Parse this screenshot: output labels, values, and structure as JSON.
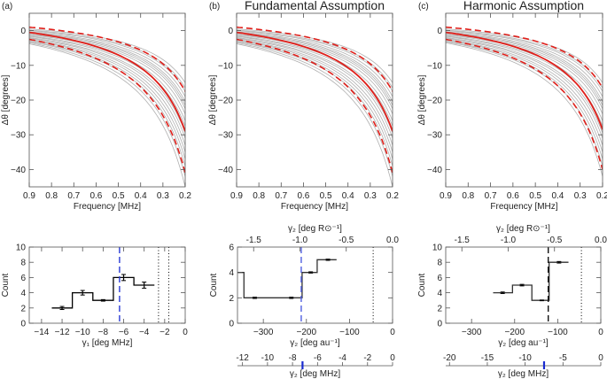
{
  "panels": {
    "a_label": "(a)",
    "b_label": "(b)",
    "c_label": "(c)",
    "b_title": "Fundamental Assumption",
    "c_title": "Harmonic Assumption"
  },
  "chart_data": [
    {
      "id": "a-top",
      "type": "line",
      "xlabel": "Frequency [MHz]",
      "ylabel": "Δθ [degrees]",
      "xlim": [
        0.9,
        0.2
      ],
      "ylim": [
        -45,
        5
      ],
      "xticks": [
        0.9,
        0.8,
        0.7,
        0.6,
        0.5,
        0.4,
        0.3,
        0.2
      ],
      "xtick_labels": [
        "0.9",
        "0.8",
        "0.7",
        "0.6",
        "0.5",
        "0.4",
        "0.3",
        "0.2"
      ],
      "yticks": [
        0,
        -10,
        -20,
        -30,
        -40
      ],
      "ytick_labels": [
        "0",
        "−10",
        "−20",
        "−30",
        "−40"
      ],
      "model": "value = a + g / frequency, each curve given by its values at 0.9 MHz and 0.2 MHz",
      "ensemble_color": "#b0b0b0",
      "ensemble": [
        [
          0.5,
          -15
        ],
        [
          0.2,
          -16.5
        ],
        [
          0,
          -17.5
        ],
        [
          -0.3,
          -19
        ],
        [
          -0.5,
          -20.5
        ],
        [
          -0.7,
          -21.5
        ],
        [
          -1,
          -22.5
        ],
        [
          -1.2,
          -24
        ],
        [
          -1.5,
          -26
        ],
        [
          -1.7,
          -27.5
        ],
        [
          -2,
          -29.5
        ],
        [
          -2.2,
          -31
        ],
        [
          -2.5,
          -33
        ],
        [
          -2.7,
          -35
        ],
        [
          -3,
          -37
        ],
        [
          -3.2,
          -39
        ],
        [
          -3.5,
          -42
        ],
        [
          -3.8,
          -45
        ]
      ],
      "mean": [
        -0.5,
        -29
      ],
      "upper": [
        1,
        -17.5
      ],
      "lower": [
        -2.5,
        -41
      ],
      "mean_color": "#e0201b"
    },
    {
      "id": "b-top",
      "type": "line",
      "xlabel": "Frequency [MHz]",
      "ylabel": "Δθ [degrees]",
      "xlim": [
        0.9,
        0.2
      ],
      "ylim": [
        -45,
        5
      ],
      "xticks": [
        0.9,
        0.8,
        0.7,
        0.6,
        0.5,
        0.4,
        0.3,
        0.2
      ],
      "xtick_labels": [
        "0.9",
        "0.8",
        "0.7",
        "0.6",
        "0.5",
        "0.4",
        "0.3",
        "0.2"
      ],
      "yticks": [
        0,
        -10,
        -20,
        -30,
        -40
      ],
      "ytick_labels": [
        "0",
        "−10",
        "−20",
        "−30",
        "−40"
      ],
      "ensemble_color": "#b0b0b0",
      "ensemble": [
        [
          0.5,
          -15
        ],
        [
          0.2,
          -16.5
        ],
        [
          0,
          -17.5
        ],
        [
          -0.3,
          -19
        ],
        [
          -0.5,
          -20.5
        ],
        [
          -0.7,
          -21.5
        ],
        [
          -1,
          -22.5
        ],
        [
          -1.2,
          -24
        ],
        [
          -1.5,
          -26
        ],
        [
          -1.7,
          -27.5
        ],
        [
          -2,
          -29.5
        ],
        [
          -2.2,
          -31
        ],
        [
          -2.5,
          -33
        ],
        [
          -2.7,
          -35
        ],
        [
          -3,
          -37
        ],
        [
          -3.2,
          -39
        ],
        [
          -3.5,
          -42
        ],
        [
          -3.8,
          -45
        ]
      ],
      "mean": [
        -0.5,
        -29
      ],
      "upper": [
        1,
        -17.5
      ],
      "lower": [
        -2.5,
        -41
      ],
      "mean_color": "#e0201b"
    },
    {
      "id": "c-top",
      "type": "line",
      "xlabel": "Frequency [MHz]",
      "ylabel": "Δθ [degrees]",
      "xlim": [
        0.9,
        0.2
      ],
      "ylim": [
        -45,
        5
      ],
      "xticks": [
        0.9,
        0.8,
        0.7,
        0.6,
        0.5,
        0.4,
        0.3,
        0.2
      ],
      "xtick_labels": [
        "0.9",
        "0.8",
        "0.7",
        "0.6",
        "0.5",
        "0.4",
        "0.3",
        "0.2"
      ],
      "yticks": [
        0,
        -10,
        -20,
        -30,
        -40
      ],
      "ytick_labels": [
        "0",
        "−10",
        "−20",
        "−30",
        "−40"
      ],
      "ensemble_color": "#b0b0b0",
      "ensemble": [
        [
          0.5,
          -15
        ],
        [
          0.2,
          -16.5
        ],
        [
          0,
          -17.5
        ],
        [
          -0.3,
          -19
        ],
        [
          -0.5,
          -20.5
        ],
        [
          -0.7,
          -21.5
        ],
        [
          -1,
          -22.5
        ],
        [
          -1.2,
          -24
        ],
        [
          -1.5,
          -26
        ],
        [
          -1.7,
          -27.5
        ],
        [
          -2,
          -29.5
        ],
        [
          -2.2,
          -31
        ],
        [
          -2.5,
          -33
        ],
        [
          -2.7,
          -35
        ],
        [
          -3,
          -37
        ],
        [
          -3.2,
          -39
        ],
        [
          -3.5,
          -42
        ]
      ],
      "mean": [
        -0.5,
        -28.5
      ],
      "upper": [
        1,
        -16.5
      ],
      "lower": [
        -2.5,
        -40
      ],
      "mean_color": "#e0201b"
    },
    {
      "id": "a-bottom",
      "type": "bar",
      "xlabel": "γ₁ [deg MHz]",
      "ylabel": "Count",
      "xlim": [
        -15.2,
        0
      ],
      "ylim": [
        0,
        10
      ],
      "xticks": [
        -14,
        -12,
        -10,
        -8,
        -6,
        -4,
        -2,
        0
      ],
      "xtick_labels": [
        "−14",
        "−12",
        "−10",
        "−8",
        "−6",
        "−4",
        "−2",
        "0"
      ],
      "yticks": [
        0,
        2,
        4,
        6,
        8,
        10
      ],
      "ytick_labels": [
        "0",
        "2",
        "4",
        "6",
        "8",
        "10"
      ],
      "bins": [
        {
          "from": -13,
          "to": -11,
          "count": 2,
          "err": 0.2
        },
        {
          "from": -11,
          "to": -9,
          "count": 4,
          "err": 0.3
        },
        {
          "from": -9,
          "to": -7,
          "count": 3,
          "err": 0.1
        },
        {
          "from": -7,
          "to": -5,
          "count": 6,
          "err": 0.4
        },
        {
          "from": -5,
          "to": -3,
          "count": 5,
          "err": 0.4
        }
      ],
      "step_color": "#000000",
      "median_line": {
        "x": -6.4,
        "color": "#2a3bd6"
      },
      "dotted_lines": [
        -2.6,
        -1.6
      ]
    },
    {
      "id": "b-bottom",
      "type": "bar",
      "xlabel": "γ₂ [deg au⁻¹]",
      "ylabel": "Count",
      "xlim": [
        -360,
        0
      ],
      "ylim": [
        0,
        6
      ],
      "xticks": [
        -300,
        -200,
        -100,
        0
      ],
      "xtick_labels": [
        "−300",
        "−200",
        "−100",
        "0"
      ],
      "yticks": [
        0,
        2,
        4,
        6
      ],
      "ytick_labels": [
        "0",
        "2",
        "4",
        "6"
      ],
      "top_axis": {
        "label": "γ₂ [deg R⊙⁻¹]",
        "factor": 215,
        "ticks": [
          -1.5,
          -1.0,
          -0.5,
          0.0
        ],
        "tick_labels": [
          "-1.5",
          "-1.0",
          "-0.5",
          "0.0"
        ]
      },
      "mhz_axis": {
        "label": "γ₂ [deg MHz]",
        "xlim": [
          -12.4,
          0
        ],
        "ticks": [
          -12,
          -10,
          -8,
          -6,
          -4,
          -2,
          0
        ],
        "tick_labels": [
          "-12",
          "-10",
          "-8",
          "-6",
          "-4",
          "-2",
          "0"
        ],
        "marker": -7.2,
        "marker_color": "#1a2bd0"
      },
      "bins": [
        {
          "from": -360,
          "to": -345,
          "count": 4,
          "err": 0
        },
        {
          "from": -345,
          "to": -300,
          "count": 2,
          "err": 0.05,
          "mark": -320
        },
        {
          "from": -300,
          "to": -255,
          "count": 2,
          "err": 0
        },
        {
          "from": -255,
          "to": -210,
          "count": 2,
          "err": 0.05,
          "mark": -235
        },
        {
          "from": -210,
          "to": -175,
          "count": 4,
          "err": 0.05,
          "mark": -190
        },
        {
          "from": -175,
          "to": -130,
          "count": 5,
          "err": 0.05,
          "mark": -150
        }
      ],
      "step_color": "#333333",
      "median_line": {
        "x": -212,
        "color": "#5060e0"
      },
      "dotted_lines": [
        -45
      ]
    },
    {
      "id": "c-bottom",
      "type": "bar",
      "xlabel": "γ₂ [deg au⁻¹]",
      "ylabel": "Count",
      "xlim": [
        -360,
        0
      ],
      "ylim": [
        0,
        10
      ],
      "xticks": [
        -300,
        -200,
        -100,
        0
      ],
      "xtick_labels": [
        "−300",
        "−200",
        "−100",
        "0"
      ],
      "yticks": [
        0,
        2,
        4,
        6,
        8,
        10
      ],
      "ytick_labels": [
        "0",
        "2",
        "4",
        "6",
        "8",
        "10"
      ],
      "top_axis": {
        "label": "γ₂ [deg R⊙⁻¹]",
        "factor": 215,
        "ticks": [
          -1.5,
          -1.0,
          -0.5,
          0.0
        ],
        "tick_labels": [
          "-1.5",
          "-1.0",
          "-0.5",
          "0.0"
        ]
      },
      "mhz_axis": {
        "label": "γ₂ [deg MHz]",
        "xlim": [
          -20.5,
          0
        ],
        "ticks": [
          -20,
          -15,
          -10,
          -5,
          0
        ],
        "tick_labels": [
          "-20",
          "-15",
          "-10",
          "-5",
          "0"
        ],
        "marker": -7.5,
        "marker_color": "#1a2bd0"
      },
      "bins": [
        {
          "from": -250,
          "to": -205,
          "count": 4,
          "err": 0.1,
          "mark": -228
        },
        {
          "from": -205,
          "to": -160,
          "count": 5,
          "err": 0.1,
          "mark": -183
        },
        {
          "from": -160,
          "to": -120,
          "count": 3,
          "err": 0.05,
          "mark": -137
        },
        {
          "from": -120,
          "to": -75,
          "count": 8,
          "err": 0.1,
          "mark": -97
        }
      ],
      "step_color": "#333333",
      "median_line": {
        "x": -122,
        "color": "#111111"
      },
      "dotted_lines": [
        -45
      ]
    }
  ]
}
